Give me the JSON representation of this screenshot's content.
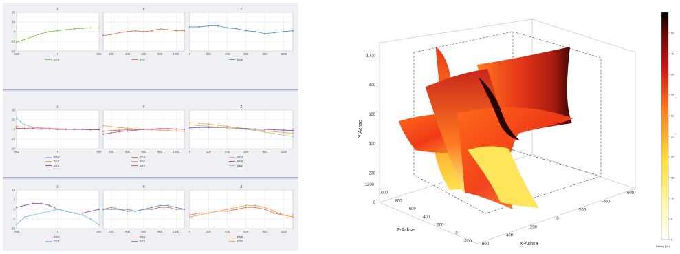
{
  "colors": {
    "green": "#8bc34a",
    "red": "#e07a5f",
    "blue": "#5b9bd5",
    "cyan": "#7ec8e3",
    "orange": "#f4a261",
    "purple": "#9b59b6",
    "magenta": "#b565a7",
    "olive": "#b0c24a",
    "lightgreen": "#a8d08d",
    "sepBlue": "#6a6aa8",
    "sepGray": "#9aa0a6"
  },
  "chart_data": [
    {
      "type": "line",
      "title": "X",
      "xlim": [
        -500,
        500
      ],
      "ylim": [
        -20,
        20
      ],
      "xticks": [
        -500,
        0,
        500
      ],
      "yticks": [
        -20,
        -10,
        0,
        10,
        20
      ],
      "series": [
        {
          "name": "EAX",
          "color": "green",
          "x": [
            -500,
            -400,
            -300,
            -200,
            -100,
            0,
            100,
            200,
            300,
            400,
            500
          ],
          "values": [
            -11,
            -8,
            -5,
            -2,
            0,
            1,
            2,
            3,
            3.5,
            4,
            4
          ]
        }
      ]
    },
    {
      "type": "line",
      "title": "Y",
      "xlim": [
        100,
        1100
      ],
      "ylim": [
        -20,
        20
      ],
      "xticks": [
        200,
        400,
        600,
        800,
        1000
      ],
      "yticks": [],
      "series": [
        {
          "name": "EAY",
          "color": "red",
          "x": [
            100,
            200,
            300,
            400,
            500,
            600,
            700,
            800,
            900,
            1000,
            1100
          ],
          "values": [
            -4,
            -3,
            -1,
            0,
            1,
            0,
            1,
            3,
            2,
            1,
            1
          ]
        }
      ]
    },
    {
      "type": "line",
      "title": "Z",
      "xlim": [
        0,
        1100
      ],
      "ylim": [
        -20,
        20
      ],
      "xticks": [
        0,
        200,
        400,
        600,
        800,
        1000
      ],
      "yticks": [],
      "series": [
        {
          "name": "EAZ",
          "color": "blue",
          "x": [
            0,
            100,
            200,
            300,
            400,
            500,
            600,
            700,
            800,
            900,
            1000,
            1100
          ],
          "values": [
            5,
            5,
            6,
            6,
            4,
            3,
            1,
            0,
            -2,
            -1,
            0,
            1
          ]
        }
      ]
    },
    {
      "type": "line",
      "title": "X",
      "xlim": [
        -500,
        500
      ],
      "ylim": [
        -50,
        50
      ],
      "xticks": [
        -500,
        0,
        500
      ],
      "yticks": [
        -50,
        -25,
        0,
        25,
        50
      ],
      "series": [
        {
          "name": "BDX",
          "color": "cyan",
          "x": [
            -500,
            -450,
            -400,
            -300,
            -200,
            -100,
            0,
            100,
            200,
            300,
            400,
            500
          ],
          "values": [
            28,
            20,
            12,
            6,
            3,
            2,
            1,
            1,
            0,
            0,
            -1,
            -1
          ]
        },
        {
          "name": "BAX",
          "color": "orange",
          "x": [
            -500,
            -400,
            -300,
            -200,
            -100,
            0,
            100,
            200,
            300,
            400,
            500
          ],
          "values": [
            8,
            6,
            5,
            4,
            3,
            2,
            1,
            1,
            0,
            0,
            0
          ]
        },
        {
          "name": "BBX",
          "color": "purple",
          "x": [
            -500,
            -400,
            -300,
            -200,
            -100,
            0,
            100,
            200,
            300,
            400,
            500
          ],
          "values": [
            3,
            2,
            2,
            1,
            1,
            0,
            0,
            0,
            0,
            -1,
            -1
          ]
        }
      ]
    },
    {
      "type": "line",
      "title": "Y",
      "xlim": [
        100,
        1100
      ],
      "ylim": [
        -50,
        50
      ],
      "xticks": [
        200,
        400,
        600,
        800,
        1000
      ],
      "yticks": [],
      "series": [
        {
          "name": "BCY",
          "color": "red",
          "x": [
            100,
            200,
            300,
            400,
            500,
            600,
            700,
            800,
            900,
            1000,
            1100
          ],
          "values": [
            -5,
            -3,
            -2,
            -1,
            0,
            0,
            0,
            1,
            1,
            1,
            0
          ]
        },
        {
          "name": "BAY",
          "color": "orange",
          "x": [
            100,
            200,
            300,
            400,
            500,
            600,
            700,
            800,
            900,
            1000,
            1100
          ],
          "values": [
            10,
            7,
            5,
            3,
            1,
            0,
            -1,
            -2,
            -3,
            -4,
            -5
          ]
        },
        {
          "name": "BBY",
          "color": "magenta",
          "x": [
            100,
            200,
            300,
            400,
            500,
            600,
            700,
            800,
            900,
            1000,
            1100
          ],
          "values": [
            -12,
            -9,
            -6,
            -4,
            -2,
            0,
            1,
            2,
            2,
            1,
            0
          ]
        }
      ]
    },
    {
      "type": "line",
      "title": "Z",
      "xlim": [
        0,
        1100
      ],
      "ylim": [
        -50,
        50
      ],
      "xticks": [
        0,
        200,
        400,
        600,
        800,
        1000
      ],
      "yticks": [],
      "series": [
        {
          "name": "BCZ",
          "color": "orange",
          "x": [
            0,
            100,
            200,
            300,
            400,
            500,
            600,
            700,
            800,
            900,
            1000,
            1100
          ],
          "values": [
            18,
            16,
            14,
            11,
            8,
            5,
            2,
            -1,
            -4,
            -6,
            -8,
            -10
          ]
        },
        {
          "name": "BAZ",
          "color": "purple",
          "x": [
            0,
            100,
            200,
            300,
            400,
            500,
            600,
            700,
            800,
            900,
            1000,
            1100
          ],
          "values": [
            4,
            5,
            5,
            5,
            4,
            3,
            2,
            1,
            0,
            -1,
            -2,
            -3
          ]
        },
        {
          "name": "BBZ",
          "color": "lightgreen",
          "x": [
            0,
            100,
            200,
            300,
            400,
            500,
            600,
            700,
            800,
            900,
            1000,
            1100
          ],
          "values": [
            12,
            10,
            8,
            6,
            4,
            2,
            0,
            -3,
            -7,
            -11,
            -15,
            -18
          ]
        }
      ]
    },
    {
      "type": "line",
      "title": "X",
      "xlim": [
        -500,
        500
      ],
      "ylim": [
        -10,
        10
      ],
      "xticks": [
        -500,
        0,
        500
      ],
      "yticks": [
        -10,
        -5,
        0,
        5,
        10
      ],
      "series": [
        {
          "name": "EDX",
          "color": "purple",
          "x": [
            -500,
            -400,
            -300,
            -200,
            -100,
            0,
            100,
            200,
            300,
            400,
            500
          ],
          "values": [
            1,
            2,
            3,
            3,
            2,
            0,
            -1,
            -2,
            -2,
            -1,
            0
          ]
        },
        {
          "name": "EYX",
          "color": "cyan",
          "x": [
            -500,
            -450,
            -400,
            -300,
            -200,
            -100,
            0,
            100,
            200,
            300,
            400,
            500
          ],
          "values": [
            -8,
            -6,
            -4,
            -3,
            -2,
            -1,
            0,
            -1,
            -2,
            -3,
            -5,
            -8
          ]
        }
      ]
    },
    {
      "type": "line",
      "title": "Y",
      "xlim": [
        100,
        1100
      ],
      "ylim": [
        -10,
        10
      ],
      "xticks": [
        200,
        400,
        600,
        800,
        1000
      ],
      "yticks": [],
      "series": [
        {
          "name": "EDY",
          "color": "red",
          "x": [
            100,
            200,
            300,
            400,
            500,
            600,
            700,
            800,
            900,
            1000,
            1100
          ],
          "values": [
            0,
            1,
            0,
            0,
            -1,
            0,
            0,
            1,
            1,
            0,
            0
          ]
        },
        {
          "name": "EYY",
          "color": "blue",
          "x": [
            100,
            200,
            300,
            400,
            500,
            600,
            700,
            800,
            900,
            1000,
            1100
          ],
          "values": [
            0,
            0,
            0,
            -1,
            -1,
            0,
            1,
            2,
            2,
            1,
            0
          ]
        }
      ]
    },
    {
      "type": "line",
      "title": "Z",
      "xlim": [
        0,
        1100
      ],
      "ylim": [
        -10,
        10
      ],
      "xticks": [
        0,
        200,
        400,
        600,
        800,
        1000
      ],
      "yticks": [],
      "series": [
        {
          "name": "EXZ",
          "color": "red",
          "x": [
            0,
            100,
            200,
            300,
            400,
            500,
            600,
            700,
            800,
            900,
            1000,
            1100
          ],
          "values": [
            -3,
            -2,
            -2,
            -1,
            -1,
            0,
            1,
            1,
            0,
            -2,
            -3,
            -3
          ]
        },
        {
          "name": "EYZ",
          "color": "orange",
          "x": [
            0,
            100,
            200,
            300,
            400,
            500,
            600,
            700,
            800,
            900,
            1000,
            1100
          ],
          "values": [
            -4,
            -3,
            -2,
            -1,
            0,
            1,
            2,
            2,
            1,
            -1,
            -3,
            -4
          ]
        }
      ]
    },
    {
      "type": "surface3d",
      "xlabel": "X-Achse",
      "ylabel": "Y-Achse",
      "zlabel": "Z-Achse",
      "xticks": [
        -600,
        -400,
        -200,
        0,
        200,
        400,
        600
      ],
      "yticks": [
        0,
        200,
        400,
        600,
        800,
        1000
      ],
      "zticks": [
        -200,
        0,
        200,
        400,
        600,
        800,
        1000,
        1200
      ],
      "colorbar": {
        "label": "Betrag [µm]",
        "ticks": [
          0,
          5,
          10,
          15,
          20,
          25,
          30,
          35,
          40,
          45,
          50
        ],
        "colormap": "hot (reversed)"
      }
    }
  ]
}
